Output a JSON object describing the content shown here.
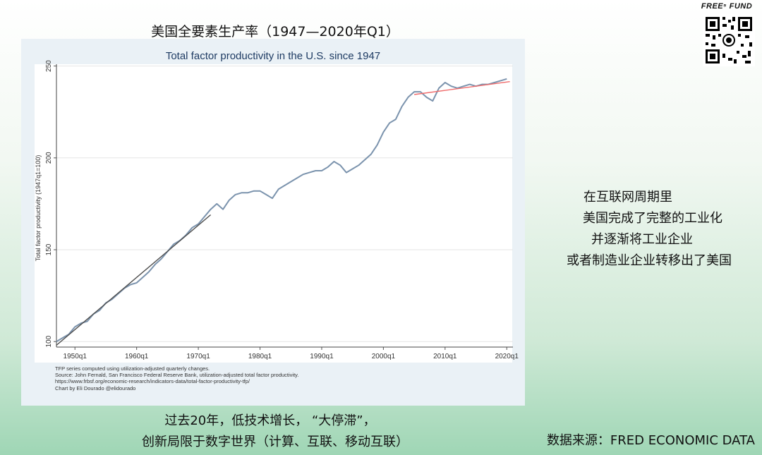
{
  "slide_title": "美国全要素生产率（1947—2020年Q1）",
  "brand": "FREE⁵ FUND",
  "side_text": [
    "在互联网周期里",
    "美国完成了完整的工业化",
    "并逐渐将工业企业",
    "或者制造业企业转移出了美国"
  ],
  "bottom_text": [
    "过去20年，低技术增长，  “大停滞”，",
    "创新局限于数字世界（计算、互联、移动互联）"
  ],
  "source": "数据来源：FRED ECONOMIC DATA",
  "chart_data": {
    "type": "line",
    "title": "Total factor productivity in the U.S. since 1947",
    "ylabel": "Total factor productivity (1947q1=100)",
    "xlim": [
      1947,
      2021
    ],
    "ylim": [
      97,
      251
    ],
    "x_ticks": [
      1950,
      1960,
      1970,
      1980,
      1990,
      2000,
      2010,
      2020
    ],
    "x_tick_labels": [
      "1950q1",
      "1960q1",
      "1970q1",
      "1980q1",
      "1990q1",
      "2000q1",
      "2010q1",
      "2020q1"
    ],
    "y_ticks": [
      100,
      150,
      200,
      250
    ],
    "grid": true,
    "series": [
      {
        "color": "#7b93ad",
        "x": [
          1947.0,
          1948.0,
          1949.0,
          1950.0,
          1951.0,
          1952.0,
          1953.0,
          1954.0,
          1955.0,
          1956.0,
          1957.0,
          1958.0,
          1959.0,
          1960.0,
          1961.0,
          1962.0,
          1963.0,
          1964.0,
          1965.0,
          1966.0,
          1967.0,
          1968.0,
          1969.0,
          1970.0,
          1971.0,
          1972.0,
          1973.0,
          1974.0,
          1975.0,
          1976.0,
          1977.0,
          1978.0,
          1979.0,
          1980.0,
          1981.0,
          1982.0,
          1983.0,
          1984.0,
          1985.0,
          1986.0,
          1987.0,
          1988.0,
          1989.0,
          1990.0,
          1991.0,
          1992.0,
          1993.0,
          1994.0,
          1995.0,
          1996.0,
          1997.0,
          1998.0,
          1999.0,
          2000.0,
          2001.0,
          2002.0,
          2003.0,
          2004.0,
          2005.0,
          2006.0,
          2007.0,
          2008.0,
          2009.0,
          2010.0,
          2011.0,
          2012.0,
          2013.0,
          2014.0,
          2015.0,
          2016.0,
          2017.0,
          2018.0,
          2019.0,
          2020.0
        ],
        "values": [
          100,
          102,
          104,
          108,
          110,
          111,
          115,
          117,
          121,
          123,
          126,
          129,
          131,
          132,
          135,
          138,
          142,
          145,
          149,
          153,
          155,
          158,
          162,
          164,
          168,
          172,
          175,
          172,
          177,
          180,
          181,
          181,
          182,
          182,
          180,
          178,
          183,
          185,
          187,
          189,
          191,
          192,
          193,
          193,
          195,
          198,
          196,
          192,
          194,
          196,
          199,
          202,
          207,
          214,
          219,
          221,
          228,
          233,
          236,
          236,
          233,
          231,
          238,
          241,
          239,
          238,
          239,
          240,
          239,
          240,
          240,
          241,
          242,
          243
        ]
      },
      {
        "color": "#4d4d4d",
        "x": [
          1947.0,
          1972.0
        ],
        "values": [
          98,
          169
        ]
      },
      {
        "color": "#ef6b6b",
        "x": [
          2005.0,
          2020.5
        ],
        "values": [
          234.5,
          241.5
        ]
      }
    ],
    "annotations": [
      "TFP series computed using utilization-adjusted quarterly changes.",
      "Source: John Fernald, San Francisco Federal Reserve Bank, utilization-adjusted total factor productivity.",
      "https://www.frbsf.org/economic-research/indicators-data/total-factor-productivity-tfp/",
      "Chart by Eli Dourado @elidourado"
    ]
  }
}
